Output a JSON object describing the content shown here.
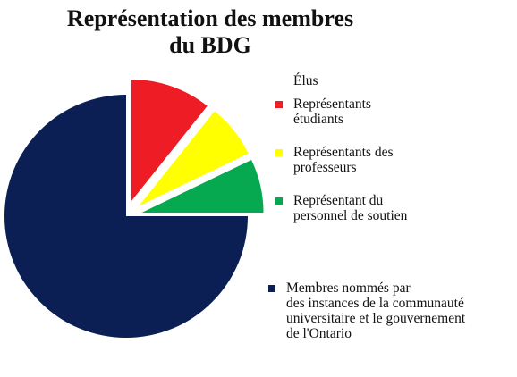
{
  "chart_data": {
    "type": "pie",
    "title": "Représentation des membres du BDG",
    "title_lines": [
      "Représentation des membres",
      "du BDG"
    ],
    "legend_heading": "Élus",
    "legend_placement": "right",
    "slices": [
      {
        "name": "Représentants étudiants",
        "label_lines": "Représentants\nétudiants",
        "value": 3,
        "color": "#ee1c24",
        "exploded": true
      },
      {
        "name": "Représentants des professeurs",
        "label_lines": "Représentants des\nprofesseurs",
        "value": 2,
        "color": "#ffff00",
        "exploded": true
      },
      {
        "name": "Représentant du personnel de soutien",
        "label_lines": "Représentant du\npersonnel de soutien",
        "value": 2,
        "color": "#06a94f",
        "exploded": true
      },
      {
        "name": "Membres nommés par des instances de la communauté universitaire et le gouvernement de l'Ontario",
        "label_lines": "Membres nommés par\ndes instances de la communauté\nuniversitaire et le gouvernement\nde l'Ontario",
        "value": 21,
        "color": "#0b1f55",
        "exploded": false
      }
    ]
  }
}
